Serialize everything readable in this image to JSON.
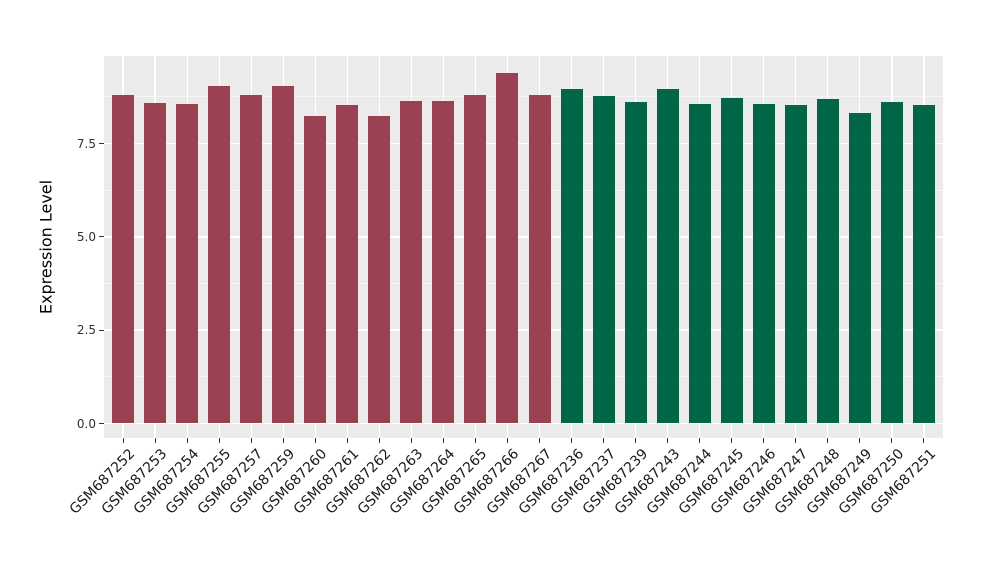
{
  "chart_data": {
    "type": "bar",
    "title": "",
    "xlabel": "",
    "ylabel": "Expression Level",
    "ylim": [
      0,
      9.87
    ],
    "grid": true,
    "legend_position": "none",
    "panel_background": "#EBEBEB",
    "gridline_color": "#FFFFFF",
    "y_ticks": [
      {
        "value": 0.0,
        "label": "0.0"
      },
      {
        "value": 2.5,
        "label": "2.5"
      },
      {
        "value": 5.0,
        "label": "5.0"
      },
      {
        "value": 7.5,
        "label": "7.5"
      }
    ],
    "y_minor_ticks": [
      1.25,
      3.75,
      6.25,
      8.75
    ],
    "group_colors": {
      "group1": "#9B4252",
      "group2": "#006647"
    },
    "bars": [
      {
        "label": "GSM687252",
        "value": 8.79,
        "group": "group1"
      },
      {
        "label": "GSM687253",
        "value": 8.59,
        "group": "group1"
      },
      {
        "label": "GSM687254",
        "value": 8.56,
        "group": "group1"
      },
      {
        "label": "GSM687255",
        "value": 9.05,
        "group": "group1"
      },
      {
        "label": "GSM687257",
        "value": 8.81,
        "group": "group1"
      },
      {
        "label": "GSM687259",
        "value": 9.04,
        "group": "group1"
      },
      {
        "label": "GSM687260",
        "value": 8.25,
        "group": "group1"
      },
      {
        "label": "GSM687261",
        "value": 8.53,
        "group": "group1"
      },
      {
        "label": "GSM687262",
        "value": 8.23,
        "group": "group1"
      },
      {
        "label": "GSM687263",
        "value": 8.63,
        "group": "group1"
      },
      {
        "label": "GSM687264",
        "value": 8.65,
        "group": "group1"
      },
      {
        "label": "GSM687265",
        "value": 8.8,
        "group": "group1"
      },
      {
        "label": "GSM687266",
        "value": 9.38,
        "group": "group1"
      },
      {
        "label": "GSM687267",
        "value": 8.79,
        "group": "group1"
      },
      {
        "label": "GSM687236",
        "value": 8.97,
        "group": "group2"
      },
      {
        "label": "GSM687237",
        "value": 8.76,
        "group": "group2"
      },
      {
        "label": "GSM687239",
        "value": 8.6,
        "group": "group2"
      },
      {
        "label": "GSM687243",
        "value": 8.97,
        "group": "group2"
      },
      {
        "label": "GSM687244",
        "value": 8.57,
        "group": "group2"
      },
      {
        "label": "GSM687245",
        "value": 8.72,
        "group": "group2"
      },
      {
        "label": "GSM687246",
        "value": 8.55,
        "group": "group2"
      },
      {
        "label": "GSM687247",
        "value": 8.52,
        "group": "group2"
      },
      {
        "label": "GSM687248",
        "value": 8.7,
        "group": "group2"
      },
      {
        "label": "GSM687249",
        "value": 8.33,
        "group": "group2"
      },
      {
        "label": "GSM687250",
        "value": 8.61,
        "group": "group2"
      },
      {
        "label": "GSM687251",
        "value": 8.53,
        "group": "group2"
      }
    ]
  }
}
